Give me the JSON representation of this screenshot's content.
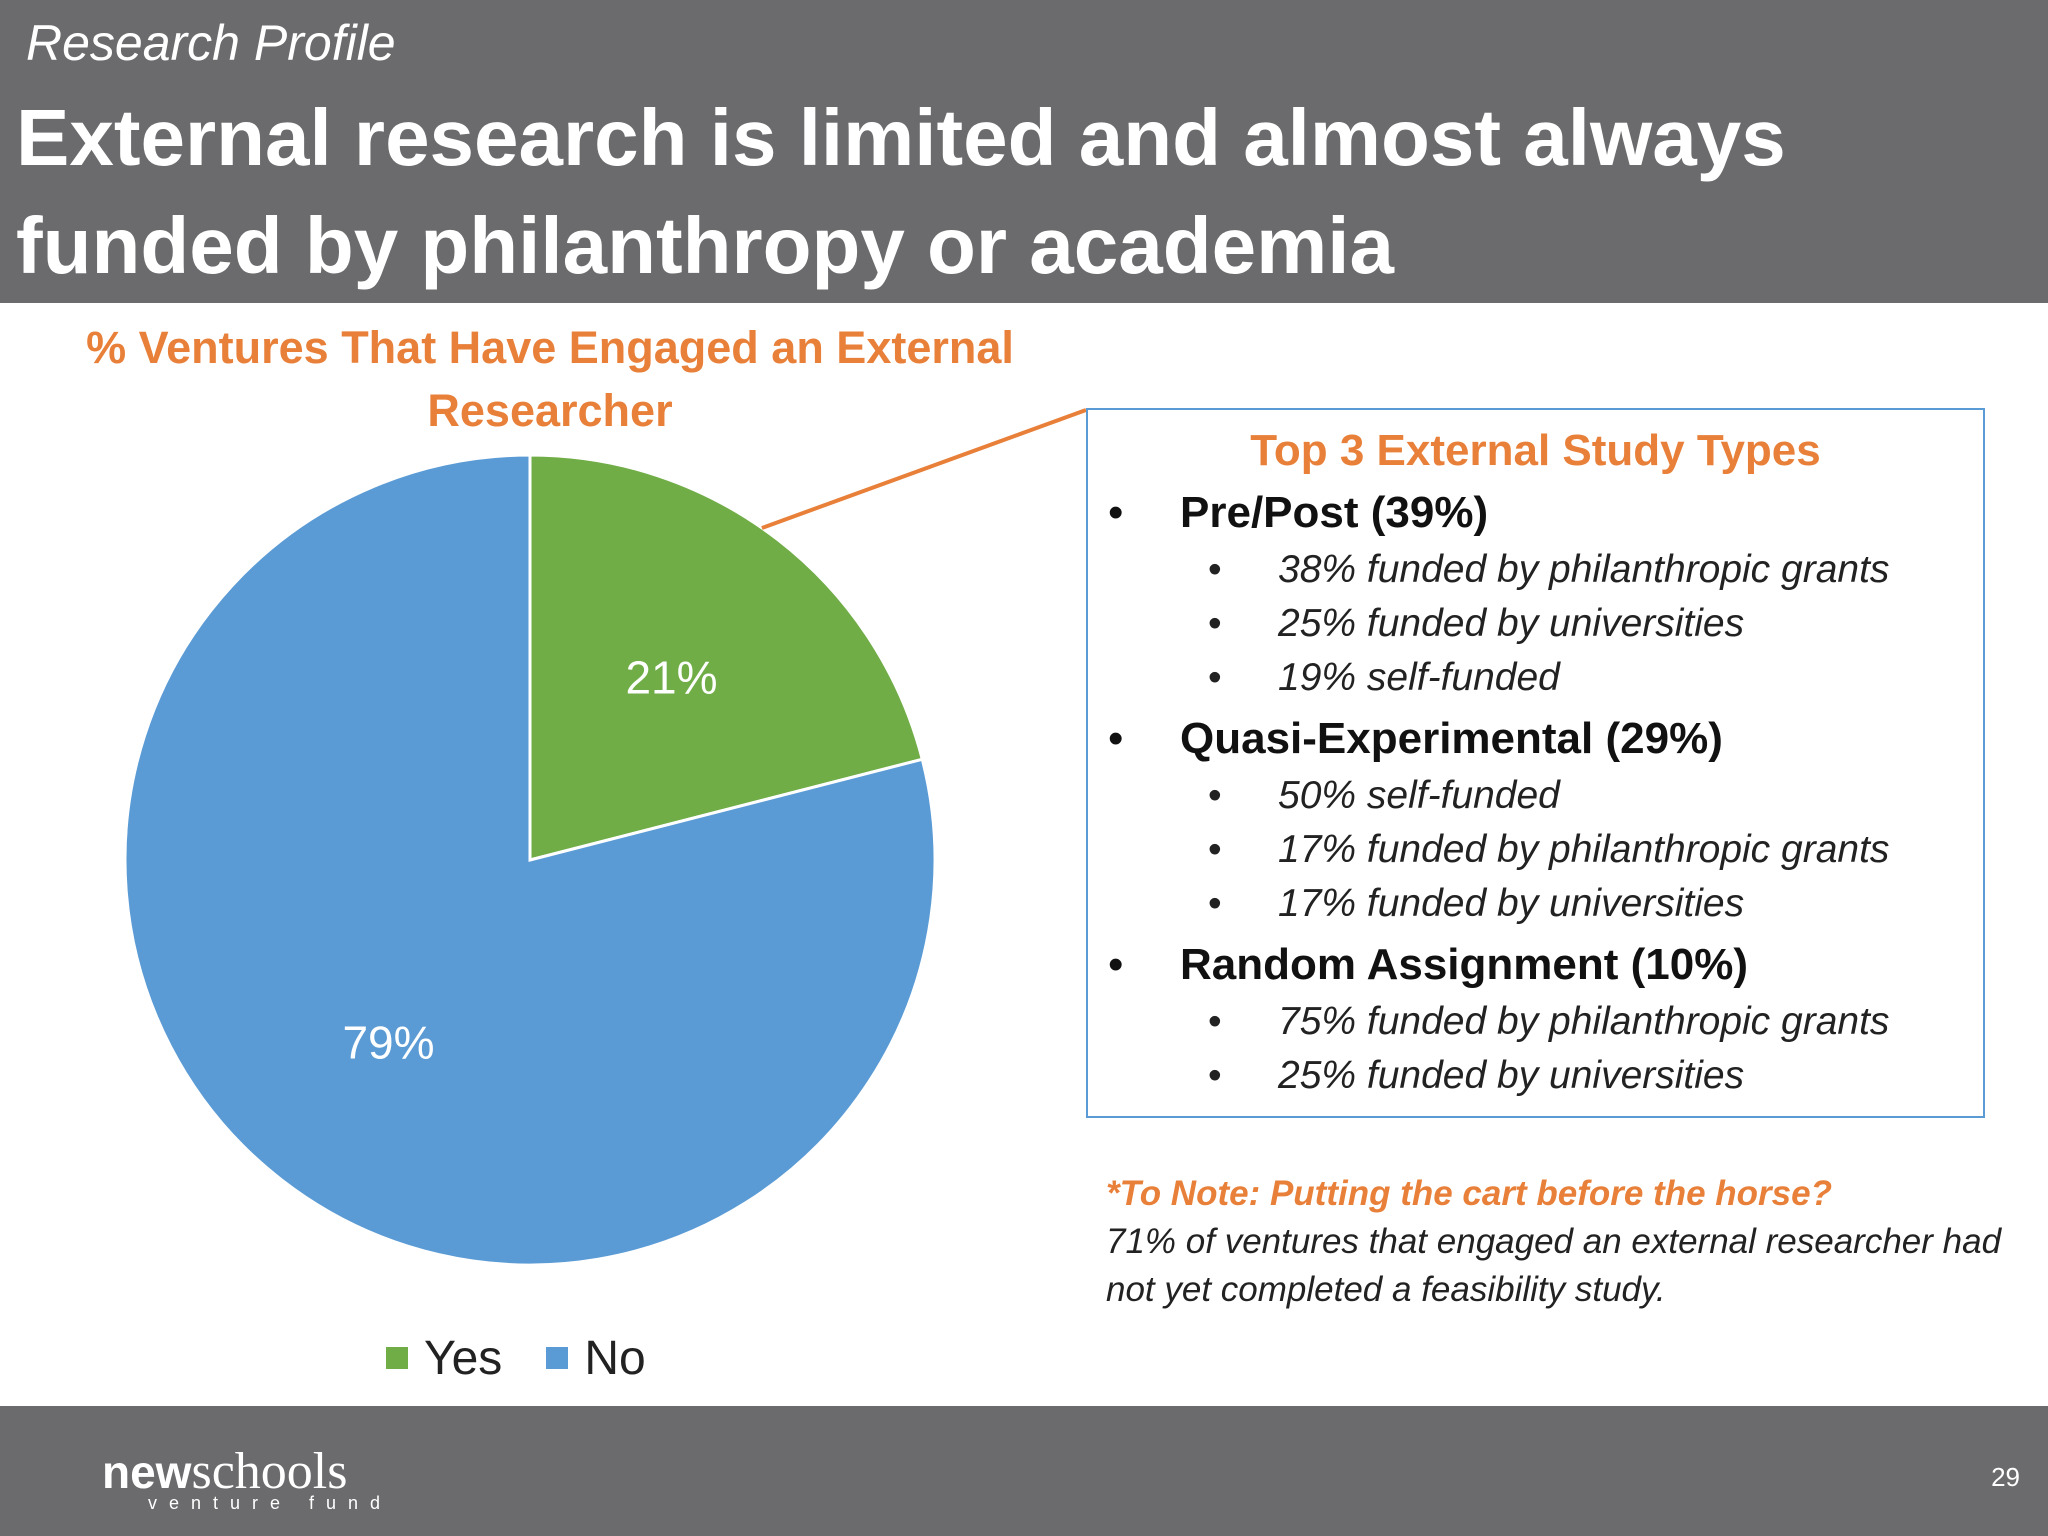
{
  "header": {
    "section_label": "Research Profile",
    "title": "External research is limited and almost always funded by philanthropy or academia"
  },
  "chart_data": {
    "type": "pie",
    "title": "% Ventures That Have Engaged an External Researcher",
    "categories": [
      "Yes",
      "No"
    ],
    "values": [
      21,
      79
    ],
    "labels": [
      "21%",
      "79%"
    ],
    "colors": [
      "#70ad47",
      "#5b9bd5"
    ],
    "legend": "bottom"
  },
  "study_box": {
    "title": "Top 3 External Study Types",
    "bullet": "•",
    "groups": [
      {
        "label": "Pre/Post (39%)",
        "items": [
          "38% funded by philanthropic grants",
          "25% funded by universities",
          "19% self-funded"
        ]
      },
      {
        "label": "Quasi-Experimental (29%)",
        "items": [
          "50% self-funded",
          "17% funded by philanthropic grants",
          "17% funded by universities"
        ]
      },
      {
        "label": "Random Assignment (10%)",
        "items": [
          "75% funded by philanthropic grants",
          "25% funded by universities"
        ]
      }
    ]
  },
  "note": {
    "title": "*To Note: Putting the cart before the horse?",
    "body": "71% of ventures that engaged an external researcher had not yet completed a feasibility study."
  },
  "footer": {
    "logo_new": "new",
    "logo_schools": "schools",
    "logo_sub": "venture fund",
    "page_number": "29"
  },
  "colors": {
    "header_bg": "#6b6b6e",
    "accent_orange": "#e8803a",
    "box_border": "#5b9bd5"
  }
}
